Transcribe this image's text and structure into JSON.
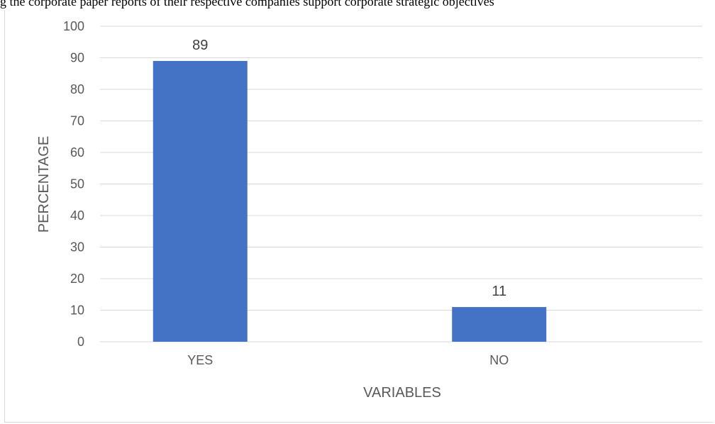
{
  "caption_fragment": "g the corporate paper reports of their respective companies support corporate strategic objectives",
  "chart_data": {
    "type": "bar",
    "categories": [
      "YES",
      "NO"
    ],
    "values": [
      89,
      11
    ],
    "xlabel": "VARIABLES",
    "ylabel": "PERCENTAGE",
    "ylim": [
      0,
      100
    ],
    "yticks": [
      0,
      10,
      20,
      30,
      40,
      50,
      60,
      70,
      80,
      90,
      100
    ],
    "grid": true,
    "bar_color": "#4472c4",
    "grid_color": "#d9d9d9"
  }
}
